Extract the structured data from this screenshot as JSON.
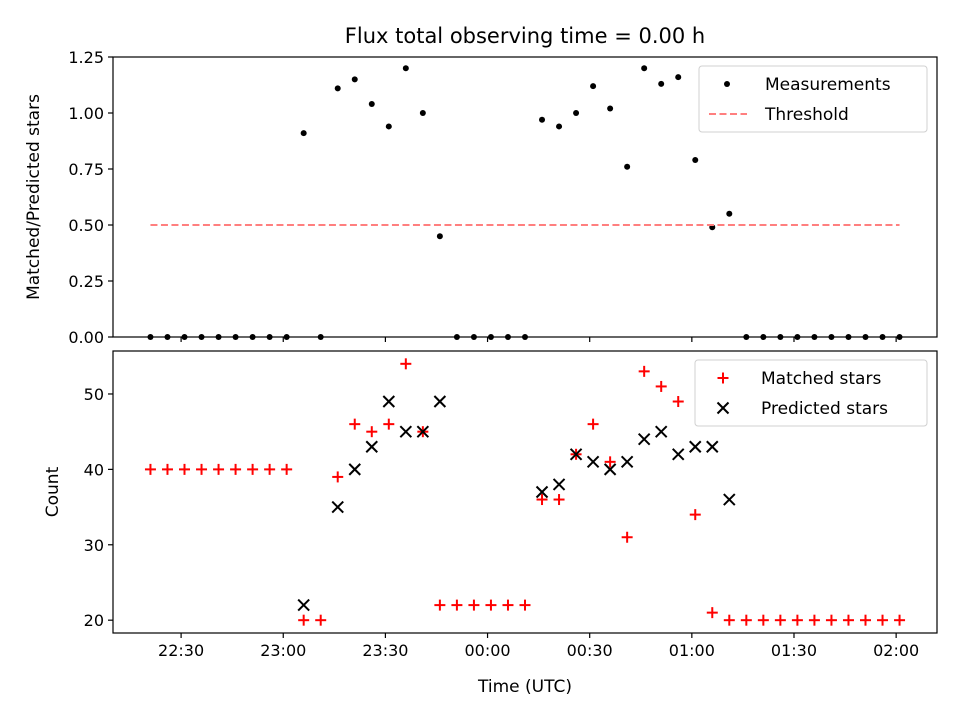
{
  "chart_data": [
    {
      "type": "scatter",
      "title": "Flux total observing time = 0.00 h",
      "xlabel": "",
      "ylabel": "Matched/Predicted stars",
      "ylim": [
        0,
        1.25
      ],
      "yticks": [
        "0.00",
        "0.25",
        "0.50",
        "0.75",
        "1.00",
        "1.25"
      ],
      "legend_position": "top-right",
      "series": [
        {
          "name": "Measurements",
          "marker": "dot",
          "color": "#000000",
          "points": [
            [
              "22:21",
              0.0
            ],
            [
              "22:26",
              0.0
            ],
            [
              "22:31",
              0.0
            ],
            [
              "22:36",
              0.0
            ],
            [
              "22:41",
              0.0
            ],
            [
              "22:46",
              0.0
            ],
            [
              "22:51",
              0.0
            ],
            [
              "22:56",
              0.0
            ],
            [
              "23:01",
              0.0
            ],
            [
              "23:06",
              0.91
            ],
            [
              "23:11",
              0.0
            ],
            [
              "23:16",
              1.11
            ],
            [
              "23:21",
              1.15
            ],
            [
              "23:26",
              1.04
            ],
            [
              "23:31",
              0.94
            ],
            [
              "23:36",
              1.2
            ],
            [
              "23:41",
              1.0
            ],
            [
              "23:46",
              0.45
            ],
            [
              "23:51",
              0.0
            ],
            [
              "23:56",
              0.0
            ],
            [
              "00:01",
              0.0
            ],
            [
              "00:06",
              0.0
            ],
            [
              "00:11",
              0.0
            ],
            [
              "00:16",
              0.97
            ],
            [
              "00:21",
              0.94
            ],
            [
              "00:26",
              1.0
            ],
            [
              "00:31",
              1.12
            ],
            [
              "00:36",
              1.02
            ],
            [
              "00:41",
              0.76
            ],
            [
              "00:46",
              1.2
            ],
            [
              "00:51",
              1.13
            ],
            [
              "00:56",
              1.16
            ],
            [
              "01:01",
              0.79
            ],
            [
              "01:06",
              0.49
            ],
            [
              "01:11",
              0.55
            ],
            [
              "01:16",
              0.0
            ],
            [
              "01:21",
              0.0
            ],
            [
              "01:26",
              0.0
            ],
            [
              "01:31",
              0.0
            ],
            [
              "01:36",
              0.0
            ],
            [
              "01:41",
              0.0
            ],
            [
              "01:46",
              0.0
            ],
            [
              "01:51",
              0.0
            ],
            [
              "01:56",
              0.0
            ],
            [
              "02:01",
              0.0
            ]
          ]
        },
        {
          "name": "Threshold",
          "type": "line",
          "style": "dashed",
          "color": "#ff7f7f",
          "points": [
            [
              "22:21",
              0.5
            ],
            [
              "02:01",
              0.5
            ]
          ]
        }
      ]
    },
    {
      "type": "scatter",
      "title": "",
      "xlabel": "Time (UTC)",
      "ylabel": "Count",
      "ylim": [
        18.3,
        55.7
      ],
      "yticks": [
        "20",
        "30",
        "40",
        "50"
      ],
      "xticks": [
        "22:30",
        "23:00",
        "23:30",
        "00:00",
        "00:30",
        "01:00",
        "01:30",
        "02:00"
      ],
      "legend_position": "top-right",
      "series": [
        {
          "name": "Matched stars",
          "marker": "plus",
          "color": "#ff0000",
          "points": [
            [
              "22:21",
              40
            ],
            [
              "22:26",
              40
            ],
            [
              "22:31",
              40
            ],
            [
              "22:36",
              40
            ],
            [
              "22:41",
              40
            ],
            [
              "22:46",
              40
            ],
            [
              "22:51",
              40
            ],
            [
              "22:56",
              40
            ],
            [
              "23:01",
              40
            ],
            [
              "23:06",
              20
            ],
            [
              "23:11",
              20
            ],
            [
              "23:16",
              39
            ],
            [
              "23:21",
              46
            ],
            [
              "23:26",
              45
            ],
            [
              "23:31",
              46
            ],
            [
              "23:36",
              54
            ],
            [
              "23:41",
              45
            ],
            [
              "23:46",
              22
            ],
            [
              "23:51",
              22
            ],
            [
              "23:56",
              22
            ],
            [
              "00:01",
              22
            ],
            [
              "00:06",
              22
            ],
            [
              "00:11",
              22
            ],
            [
              "00:16",
              36
            ],
            [
              "00:21",
              36
            ],
            [
              "00:26",
              42
            ],
            [
              "00:31",
              46
            ],
            [
              "00:36",
              41
            ],
            [
              "00:41",
              31
            ],
            [
              "00:46",
              53
            ],
            [
              "00:51",
              51
            ],
            [
              "00:56",
              49
            ],
            [
              "01:01",
              34
            ],
            [
              "01:06",
              21
            ],
            [
              "01:11",
              20
            ],
            [
              "01:16",
              20
            ],
            [
              "01:21",
              20
            ],
            [
              "01:26",
              20
            ],
            [
              "01:31",
              20
            ],
            [
              "01:36",
              20
            ],
            [
              "01:41",
              20
            ],
            [
              "01:46",
              20
            ],
            [
              "01:51",
              20
            ],
            [
              "01:56",
              20
            ],
            [
              "02:01",
              20
            ]
          ]
        },
        {
          "name": "Predicted stars",
          "marker": "x",
          "color": "#000000",
          "points": [
            [
              "23:06",
              22
            ],
            [
              "23:16",
              35
            ],
            [
              "23:21",
              40
            ],
            [
              "23:26",
              43
            ],
            [
              "23:31",
              49
            ],
            [
              "23:36",
              45
            ],
            [
              "23:41",
              45
            ],
            [
              "23:46",
              49
            ],
            [
              "00:16",
              37
            ],
            [
              "00:21",
              38
            ],
            [
              "00:26",
              42
            ],
            [
              "00:31",
              41
            ],
            [
              "00:36",
              40
            ],
            [
              "00:41",
              41
            ],
            [
              "00:46",
              44
            ],
            [
              "00:51",
              45
            ],
            [
              "00:56",
              42
            ],
            [
              "01:01",
              43
            ],
            [
              "01:06",
              43
            ],
            [
              "01:11",
              36
            ]
          ]
        }
      ]
    }
  ]
}
